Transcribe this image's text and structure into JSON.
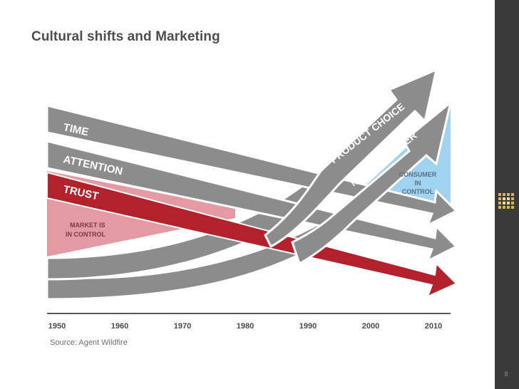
{
  "slide": {
    "title": "Cultural shifts and Marketing",
    "source": "Source: Agent Wildfire",
    "page_number": "8"
  },
  "diagram": {
    "declining_trends": [
      "TIME",
      "ATTENTION",
      "TRUST"
    ],
    "rising_trends": [
      "PRODUCT CHOICE",
      "MEDIA CLUTTER"
    ],
    "left_region": [
      "MARKET IS",
      "IN CONTROL"
    ],
    "right_region": [
      "CONSUMER",
      "IN",
      "CONTROL"
    ],
    "years": [
      "1950",
      "1960",
      "1970",
      "1980",
      "1990",
      "2000",
      "2010"
    ]
  },
  "colors": {
    "gray_arrow": "#8c8c8c",
    "trust_red": "#b3222c",
    "market_pink": "#e39aa3",
    "consumer_blue": "#9fd3f0",
    "consumer_text": "#5a6f80",
    "sidebar": "#3a3a3a"
  }
}
